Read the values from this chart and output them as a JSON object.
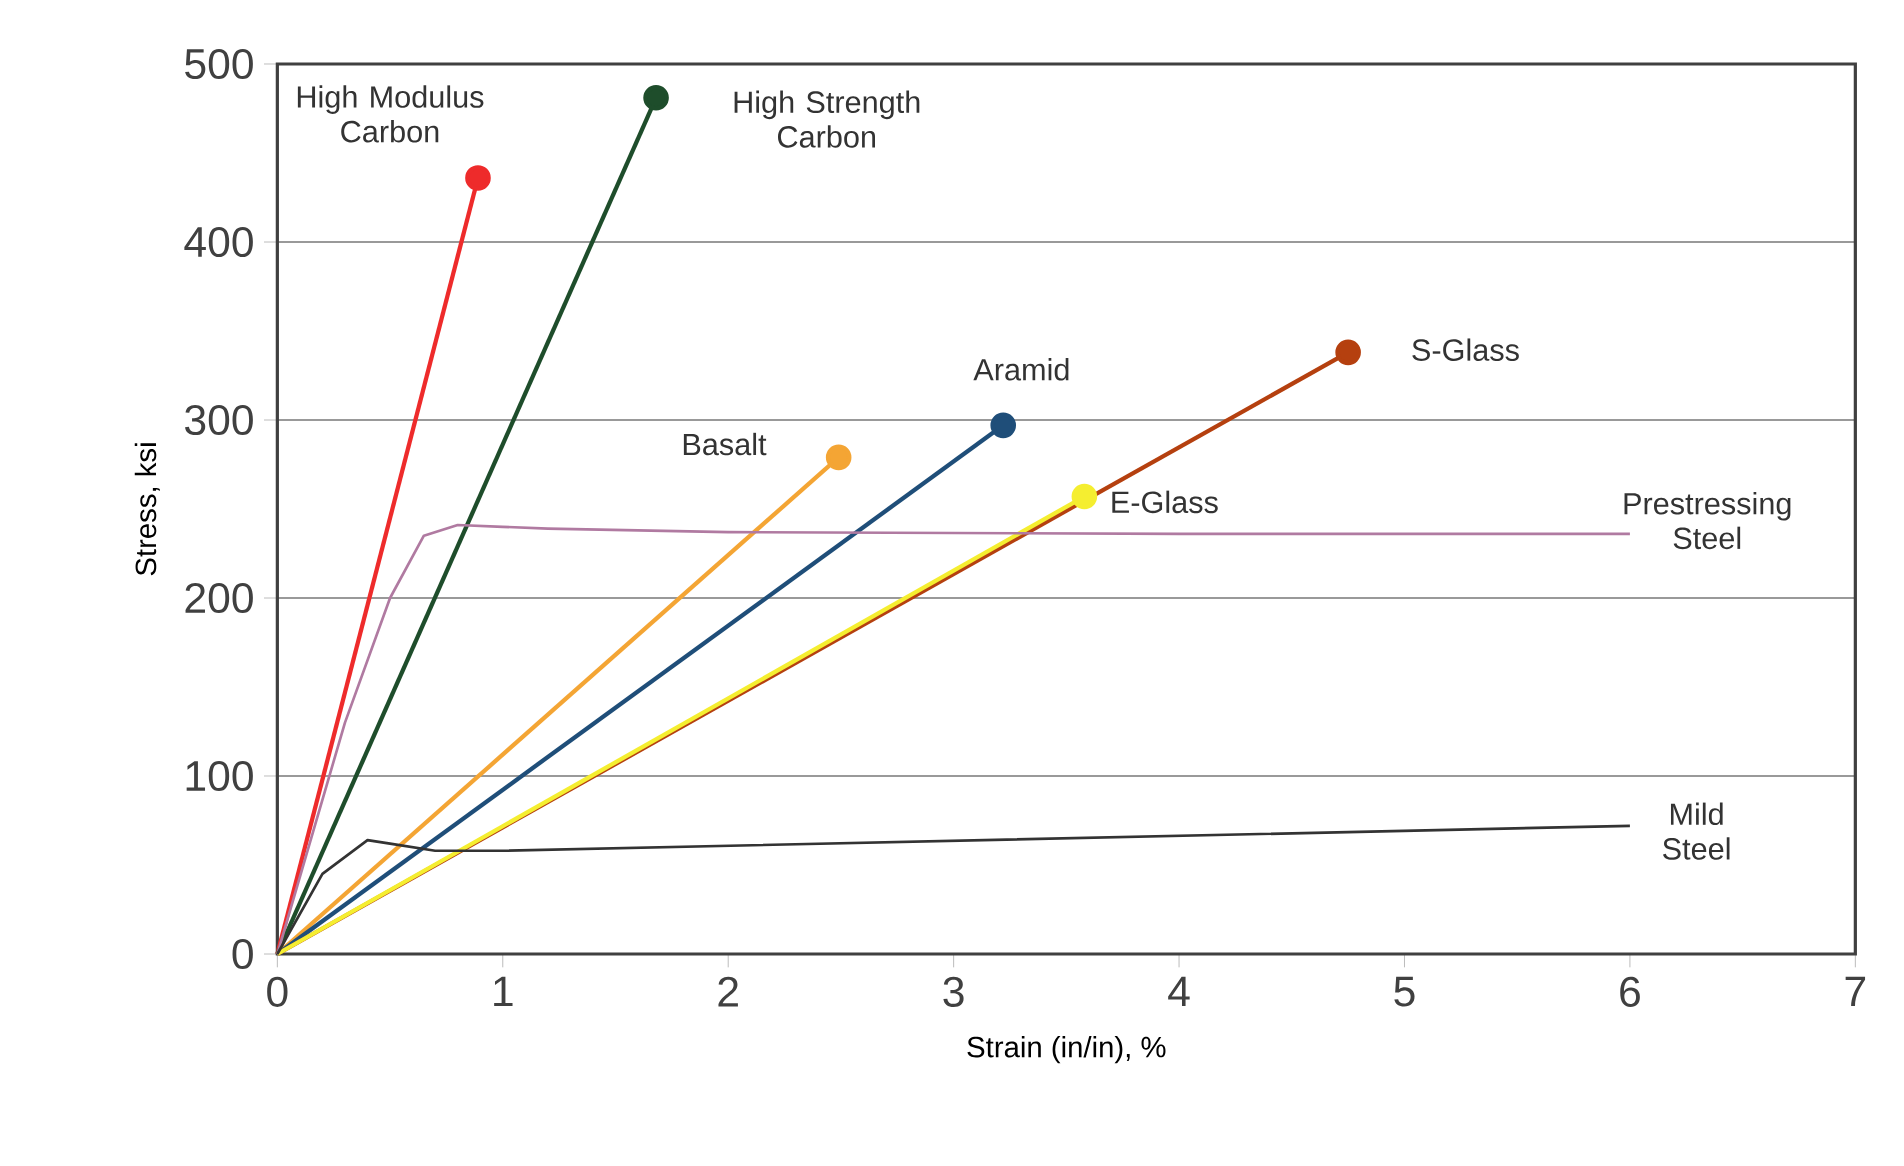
{
  "chart_data": {
    "type": "line",
    "xlabel": "Strain (in/in), %",
    "ylabel": "Stress, ksi",
    "xlim": [
      0,
      7
    ],
    "ylim": [
      0,
      500
    ],
    "xticks": [
      0,
      1,
      2,
      3,
      4,
      5,
      6,
      7
    ],
    "yticks": [
      0,
      100,
      200,
      300,
      400,
      500
    ],
    "grid": "y",
    "line_style": "solid",
    "series": [
      {
        "name": "High Modulus Carbon",
        "color": "#ee2b2b",
        "marker": "circle",
        "x": [
          0,
          0.89
        ],
        "values": [
          0,
          436
        ]
      },
      {
        "name": "High Strength Carbon",
        "color": "#1e4d2b",
        "marker": "circle",
        "x": [
          0,
          1.68
        ],
        "values": [
          0,
          481
        ]
      },
      {
        "name": "Basalt",
        "color": "#f4a534",
        "marker": "circle",
        "x": [
          0,
          2.49
        ],
        "values": [
          0,
          279
        ]
      },
      {
        "name": "Aramid",
        "color": "#1f4e79",
        "marker": "circle",
        "x": [
          0,
          3.22
        ],
        "values": [
          0,
          297
        ]
      },
      {
        "name": "S-Glass",
        "color": "#b5400f",
        "marker": "circle",
        "x": [
          0,
          4.75
        ],
        "values": [
          0,
          338
        ]
      },
      {
        "name": "E-Glass",
        "color": "#f5ee30",
        "marker": "circle",
        "x": [
          0,
          3.58
        ],
        "values": [
          0,
          257
        ]
      },
      {
        "name": "Prestressing Steel",
        "color": "#b07aa1",
        "marker": "none",
        "x": [
          0,
          0.3,
          0.5,
          0.65,
          0.8,
          1.0,
          1.2,
          2,
          4,
          6
        ],
        "values": [
          0,
          130,
          200,
          235,
          241,
          240,
          239,
          237,
          236,
          236
        ]
      },
      {
        "name": "Mild Steel",
        "color": "#333333",
        "marker": "none",
        "x": [
          0,
          0.2,
          0.4,
          0.5,
          0.7,
          1.0,
          6
        ],
        "values": [
          0,
          45,
          64,
          62,
          58,
          58,
          72
        ]
      }
    ]
  }
}
